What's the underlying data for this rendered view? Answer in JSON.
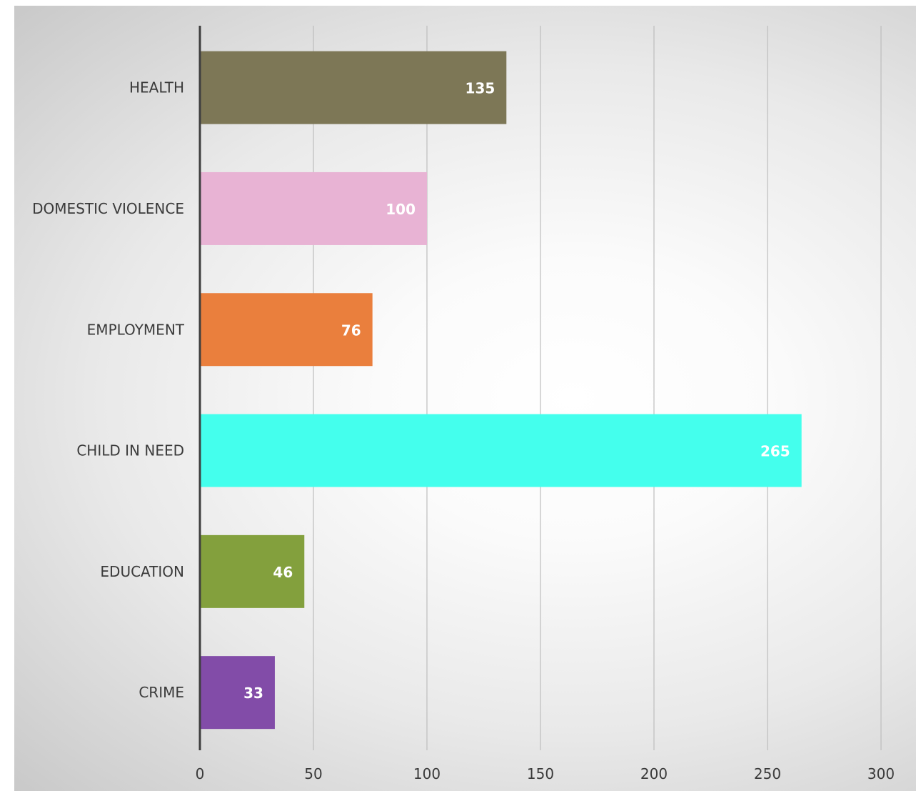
{
  "chart_data": {
    "type": "bar",
    "orientation": "horizontal",
    "categories": [
      "HEALTH",
      "DOMESTIC VIOLENCE",
      "EMPLOYMENT",
      "CHILD IN NEED",
      "EDUCATION",
      "CRIME"
    ],
    "values": [
      135,
      100,
      76,
      265,
      46,
      33
    ],
    "colors": [
      "#7d7756",
      "#e8b3d4",
      "#ea7f3d",
      "#44ffed",
      "#83a03d",
      "#824ca8"
    ],
    "xlim": [
      0,
      300
    ],
    "xticks": [
      0,
      50,
      100,
      150,
      200,
      250,
      300
    ],
    "grid": "vertical",
    "data_labels": true,
    "title": "",
    "xlabel": "",
    "ylabel": ""
  }
}
